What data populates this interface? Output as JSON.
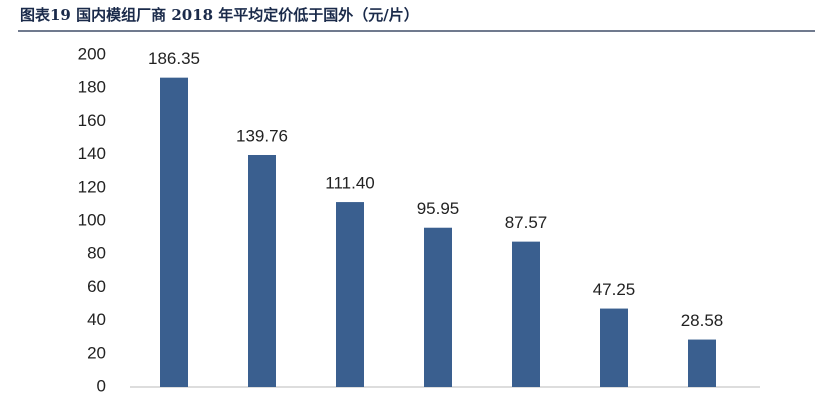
{
  "chart_data": {
    "type": "bar",
    "title": "图表19  国内模组厂商 2018 年平均定价低于国外（元/片）",
    "categories": [
      null,
      null,
      null,
      null,
      null,
      null,
      null
    ],
    "values": [
      186.35,
      139.76,
      111.4,
      95.95,
      87.57,
      47.25,
      28.58
    ],
    "value_labels": [
      "186.35",
      "139.76",
      "111.40",
      "95.95",
      "87.57",
      "47.25",
      "28.58"
    ],
    "color": "#3a5f8f",
    "ylim": [
      0,
      200
    ],
    "yticks": [
      0,
      20,
      40,
      60,
      80,
      100,
      120,
      140,
      160,
      180,
      200
    ],
    "grid": false
  }
}
